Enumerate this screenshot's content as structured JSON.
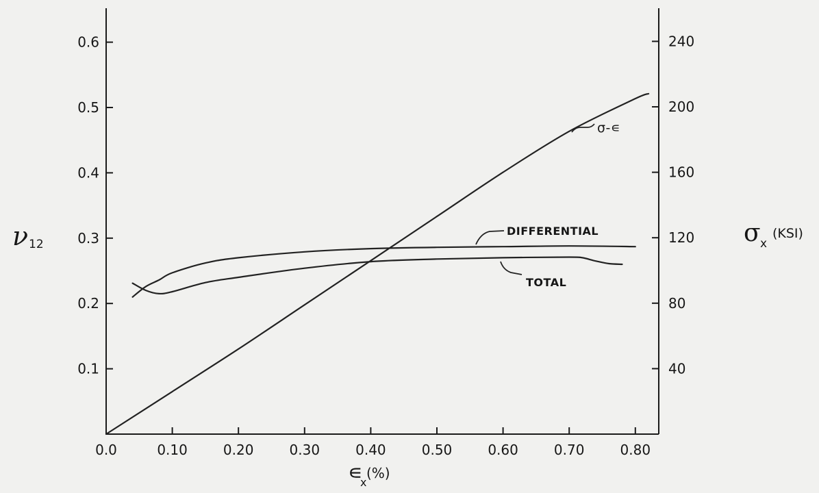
{
  "chart_data": {
    "type": "line",
    "title": "",
    "x_axis": {
      "label_symbol": "∊",
      "label_subscript": "x",
      "label_suffix": "(%)",
      "range": [
        0.0,
        0.84
      ],
      "ticks": [
        0.0,
        0.1,
        0.2,
        0.3,
        0.4,
        0.5,
        0.6,
        0.7,
        0.8
      ],
      "tick_labels": [
        "0.0",
        "0.10",
        "0.20",
        "0.30",
        "0.40",
        "0.50",
        "0.60",
        "0.70",
        "0.80"
      ]
    },
    "y_axis_left": {
      "label_symbol": "ν",
      "label_subscript": "12",
      "range": [
        0.0,
        0.65
      ],
      "ticks": [
        0.1,
        0.2,
        0.3,
        0.4,
        0.5,
        0.6
      ],
      "tick_labels": [
        "0.1",
        "0.2",
        "0.3",
        "0.4",
        "0.5",
        "0.6"
      ]
    },
    "y_axis_right": {
      "label_symbol": "σ",
      "label_subscript": "x",
      "label_suffix": "(KSI)",
      "range": [
        0,
        260
      ],
      "ticks": [
        40,
        80,
        120,
        160,
        200,
        240
      ],
      "tick_labels": [
        "40",
        "80",
        "120",
        "160",
        "200",
        "240"
      ]
    },
    "grid": false,
    "series": [
      {
        "name": "DIFFERENTIAL",
        "axis": "left",
        "x": [
          0.04,
          0.06,
          0.08,
          0.1,
          0.15,
          0.2,
          0.3,
          0.4,
          0.5,
          0.6,
          0.7,
          0.72,
          0.74,
          0.76,
          0.78
        ],
        "y": [
          0.231,
          0.22,
          0.215,
          0.218,
          0.232,
          0.24,
          0.254,
          0.264,
          0.268,
          0.27,
          0.271,
          0.27,
          0.265,
          0.261,
          0.26
        ]
      },
      {
        "name": "TOTAL",
        "axis": "left",
        "x": [
          0.04,
          0.06,
          0.08,
          0.1,
          0.15,
          0.2,
          0.3,
          0.4,
          0.5,
          0.6,
          0.7,
          0.8
        ],
        "y": [
          0.21,
          0.226,
          0.236,
          0.247,
          0.262,
          0.27,
          0.279,
          0.284,
          0.286,
          0.287,
          0.288,
          0.287
        ]
      },
      {
        "name": "σ-∊",
        "axis": "right",
        "x": [
          0.0,
          0.1,
          0.2,
          0.3,
          0.4,
          0.5,
          0.6,
          0.7,
          0.8,
          0.82
        ],
        "y": [
          0,
          26,
          52,
          79,
          106,
          133,
          160,
          185,
          205,
          208
        ]
      }
    ],
    "annotations": [
      {
        "text": "DIFFERENTIAL",
        "series": "DIFFERENTIAL"
      },
      {
        "text": "TOTAL",
        "series": "TOTAL"
      },
      {
        "text": "σ-∊",
        "series": "σ-∊"
      }
    ]
  }
}
